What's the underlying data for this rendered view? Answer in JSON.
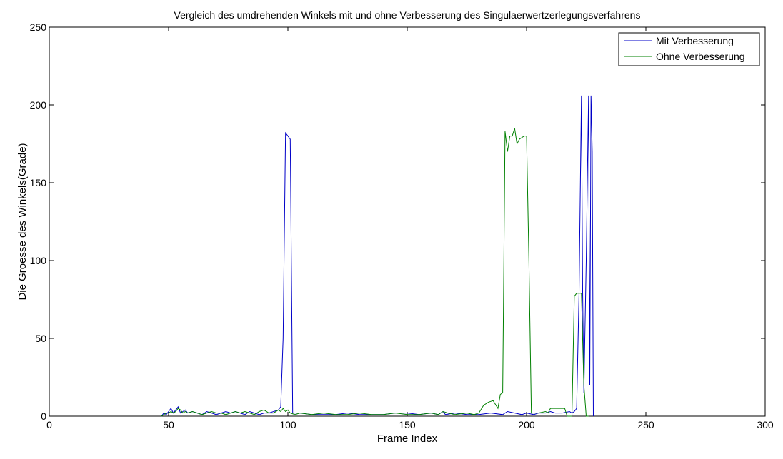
{
  "chart_data": {
    "type": "line",
    "title": "Vergleich des umdrehenden Winkels mit und ohne Verbesserung des Singulaerwertzerlegungsverfahrens",
    "xlabel": "Frame Index",
    "ylabel": "Die Groesse des Winkels(Grade)",
    "xlim": [
      0,
      300
    ],
    "ylim": [
      0,
      250
    ],
    "xticks": [
      0,
      50,
      100,
      150,
      200,
      250,
      300
    ],
    "yticks": [
      0,
      50,
      100,
      150,
      200,
      250
    ],
    "grid": false,
    "legend_position": "top-right",
    "series": [
      {
        "name": "Mit Verbesserung",
        "color": "#0000c8",
        "x": [
          47,
          48,
          49,
          50,
          51,
          52,
          53,
          54,
          55,
          56,
          57,
          58,
          60,
          62,
          64,
          66,
          68,
          70,
          72,
          74,
          76,
          78,
          80,
          82,
          84,
          86,
          88,
          90,
          92,
          94,
          96,
          97,
          98,
          99,
          100,
          101,
          102,
          103,
          105,
          110,
          115,
          120,
          125,
          130,
          135,
          140,
          145,
          150,
          155,
          160,
          163,
          164,
          165,
          166,
          170,
          175,
          180,
          185,
          190,
          192,
          195,
          198,
          200,
          203,
          205,
          208,
          210,
          212,
          215,
          218,
          219,
          220,
          221,
          222,
          223,
          223.5,
          224,
          225,
          226,
          226.5,
          227,
          227.5,
          228
        ],
        "y": [
          0,
          2,
          1,
          3,
          5,
          2,
          4,
          6,
          2,
          3,
          4,
          2,
          3,
          2,
          1,
          3,
          2,
          1,
          2,
          3,
          2,
          3,
          2,
          1,
          3,
          2,
          1,
          2,
          2,
          3,
          4,
          6,
          50,
          182,
          180,
          178,
          2,
          2,
          2,
          1,
          1,
          1,
          2,
          1,
          1,
          1,
          2,
          2,
          1,
          2,
          1,
          2,
          3,
          1,
          2,
          1,
          1,
          2,
          1,
          3,
          2,
          1,
          2,
          1,
          2,
          2,
          3,
          2,
          2,
          3,
          2,
          3,
          5,
          80,
          206,
          80,
          15,
          100,
          206,
          20,
          206,
          170,
          0
        ]
      },
      {
        "name": "Ohne Verbesserung",
        "color": "#008000",
        "x": [
          47,
          48,
          49,
          50,
          51,
          52,
          53,
          54,
          55,
          56,
          57,
          58,
          60,
          62,
          64,
          66,
          68,
          70,
          72,
          74,
          76,
          78,
          80,
          82,
          84,
          86,
          88,
          90,
          92,
          94,
          96,
          97,
          98,
          99,
          100,
          101,
          103,
          105,
          110,
          115,
          120,
          125,
          130,
          135,
          140,
          145,
          150,
          155,
          160,
          163,
          165,
          167,
          170,
          175,
          178,
          180,
          182,
          184,
          186,
          188,
          189,
          190,
          191,
          192,
          193,
          194,
          195,
          196,
          197,
          198,
          199,
          200,
          201,
          202,
          203,
          205,
          208,
          209,
          210,
          212,
          214,
          215,
          216,
          217,
          218,
          219,
          220,
          221,
          222,
          223,
          224,
          225,
          226
        ],
        "y": [
          0,
          1,
          2,
          2,
          3,
          2,
          3,
          5,
          4,
          2,
          3,
          2,
          3,
          2,
          1,
          2,
          3,
          2,
          2,
          1,
          2,
          3,
          2,
          3,
          2,
          1,
          3,
          4,
          2,
          2,
          4,
          3,
          5,
          3,
          4,
          2,
          1,
          2,
          1,
          2,
          1,
          1,
          2,
          1,
          1,
          2,
          1,
          1,
          2,
          1,
          3,
          2,
          1,
          2,
          1,
          2,
          7,
          9,
          10,
          5,
          14,
          15,
          183,
          170,
          180,
          180,
          185,
          175,
          178,
          179,
          180,
          180,
          100,
          2,
          2,
          2,
          3,
          2,
          5,
          5,
          5,
          5,
          5,
          0,
          0,
          0,
          77,
          79,
          79,
          79,
          20,
          0,
          0
        ]
      }
    ]
  }
}
